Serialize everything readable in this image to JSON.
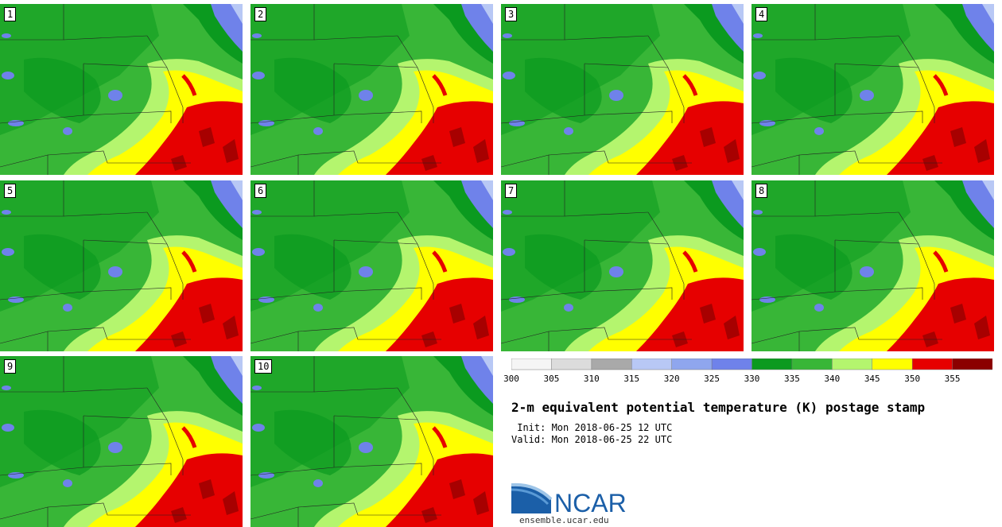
{
  "title": "2-m equivalent potential temperature (K) postage stamp",
  "init": " Init: Mon 2018-06-25 12 UTC",
  "valid": "Valid: Mon 2018-06-25 22 UTC",
  "logo_text": "NCAR",
  "website": "ensemble.ucar.edu",
  "members": [
    "1",
    "2",
    "3",
    "4",
    "5",
    "6",
    "7",
    "8",
    "9",
    "10"
  ],
  "colorbar": {
    "ticks": [
      "300",
      "305",
      "310",
      "315",
      "320",
      "325",
      "330",
      "335",
      "340",
      "345",
      "350",
      "355"
    ],
    "colors": [
      "#f5f5f5",
      "#dcdcdc",
      "#a9a9a9",
      "#b8c8f5",
      "#8fa6ee",
      "#6f82ea",
      "#0b9a1f",
      "#38b637",
      "#b4f56e",
      "#ffff00",
      "#e60000",
      "#8b0000"
    ]
  },
  "map_colors": {
    "green_dark": "#0b9a1f",
    "green": "#38b637",
    "green_light": "#b4f56e",
    "yellow": "#ffff00",
    "red": "#e60000",
    "dark_red": "#8b0000",
    "blue": "#6f82ea",
    "light_blue": "#b8c8f5"
  }
}
